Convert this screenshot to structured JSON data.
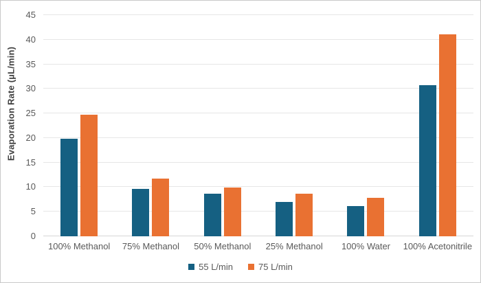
{
  "chart_data": {
    "type": "bar",
    "title": "",
    "categories": [
      "100% Methanol",
      "75% Methanol",
      "50% Methanol",
      "25% Methanol",
      "100% Water",
      "100% Acetonitrile"
    ],
    "series": [
      {
        "name": "55 L/min",
        "color": "#156082",
        "values": [
          19.8,
          9.7,
          8.6,
          7.0,
          6.1,
          30.8
        ]
      },
      {
        "name": "75 L/min",
        "color": "#E97132",
        "values": [
          24.8,
          11.7,
          9.9,
          8.6,
          7.8,
          41.1
        ]
      }
    ],
    "xlabel": "",
    "ylabel": "Evaporation Rate (µL/min)",
    "ylim": [
      0,
      45
    ],
    "yticks": [
      0,
      5,
      10,
      15,
      20,
      25,
      30,
      35,
      40,
      45
    ],
    "grid": "horizontal",
    "legend_position": "bottom"
  },
  "colors": {
    "background": "#FFFFFF",
    "frame_border": "#C9C9C9",
    "gridline": "#E6E6E6",
    "axis_line": "#D6D6D6",
    "tick_label": "#595959",
    "axis_title": "#3F3F3F",
    "series_blue": "#156082",
    "series_orange": "#E97132"
  }
}
